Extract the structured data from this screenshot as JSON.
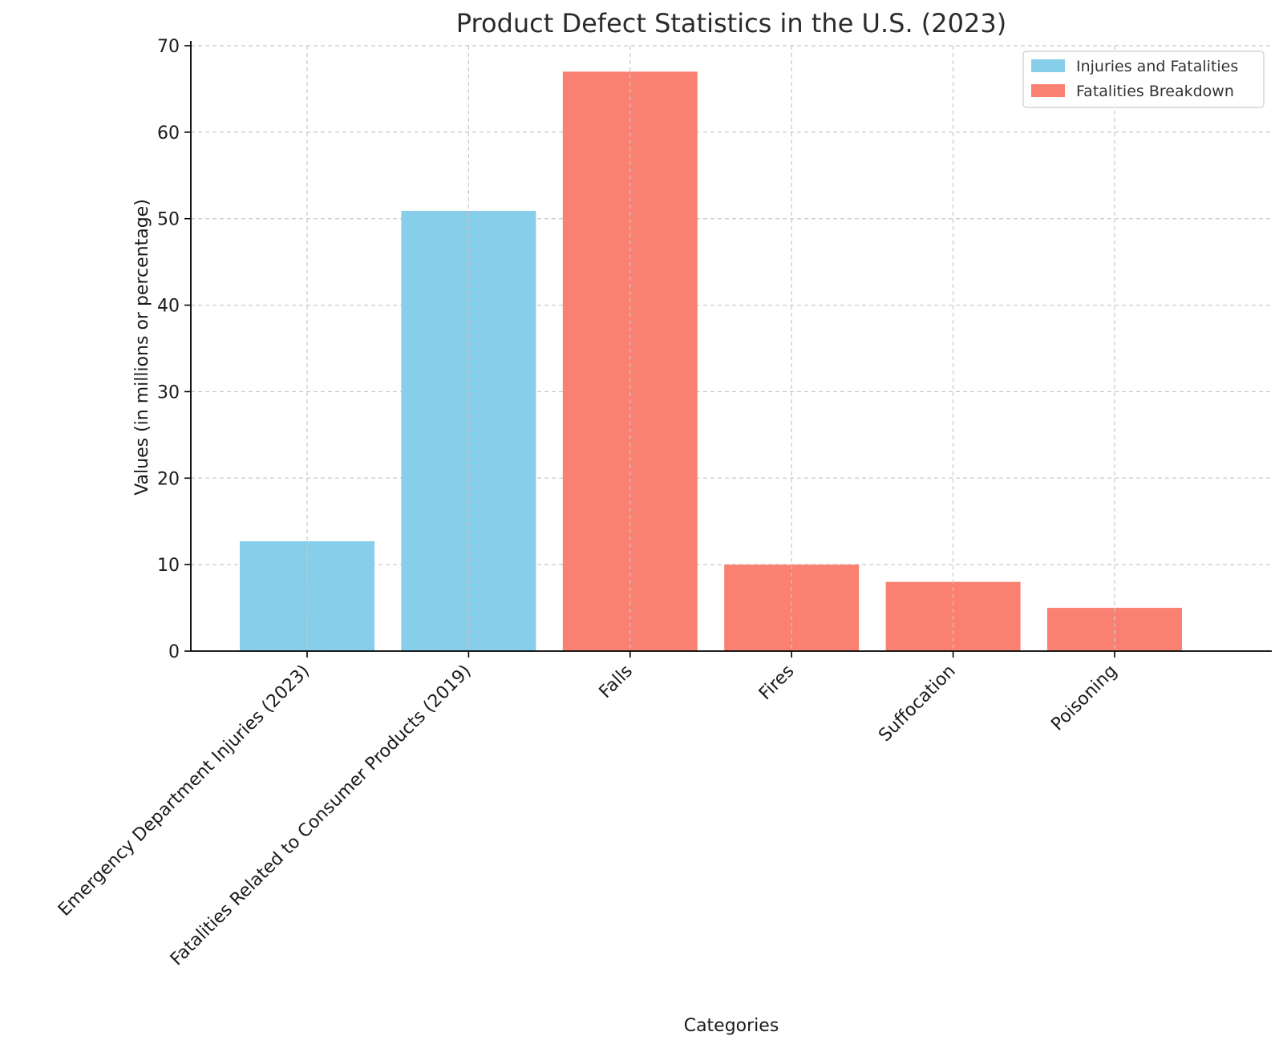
{
  "chart_data": {
    "type": "bar",
    "title": "Product Defect Statistics in the U.S. (2023)",
    "xlabel": "Categories",
    "ylabel": "Values (in millions or percentage)",
    "ylim": [
      0,
      70
    ],
    "yticks": [
      0,
      10,
      20,
      30,
      40,
      50,
      60,
      70
    ],
    "grid": true,
    "legend_position": "top-right",
    "categories": [
      "Emergency Department Injuries (2023)",
      "Fatalities Related to Consumer Products (2019)",
      "Falls",
      "Fires",
      "Suffocation",
      "Poisoning"
    ],
    "series": [
      {
        "name": "Injuries and Fatalities",
        "color": "#87ceeb",
        "values": [
          12.7,
          50.9,
          null,
          null,
          null,
          null
        ]
      },
      {
        "name": "Fatalities Breakdown",
        "color": "#fa8072",
        "values": [
          null,
          null,
          67,
          10,
          8,
          5
        ]
      }
    ]
  }
}
